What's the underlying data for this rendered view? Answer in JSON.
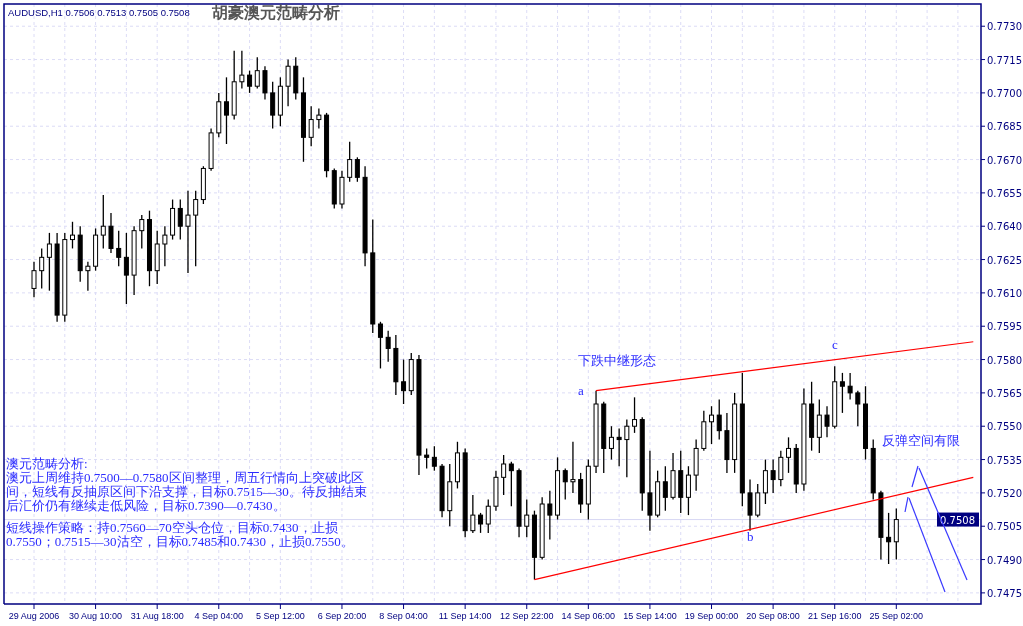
{
  "chart_data": {
    "type": "candlestick",
    "title": "胡豪澳元范畴分析",
    "subtitle": "AUDUSD,H1  0.7506 0.7513 0.7505 0.7508",
    "categories": [
      "29 Aug 2006",
      null,
      null,
      null,
      null,
      null,
      null,
      null,
      "30 Aug 10:00",
      null,
      null,
      null,
      null,
      null,
      null,
      null,
      "31 Aug 18:00",
      null,
      null,
      null,
      null,
      null,
      null,
      null,
      "4 Sep 04:00",
      null,
      null,
      null,
      null,
      null,
      null,
      null,
      "5 Sep 12:00",
      null,
      null,
      null,
      null,
      null,
      null,
      null,
      "6 Sep 20:00",
      null,
      null,
      null,
      null,
      null,
      null,
      null,
      "8 Sep 04:00",
      null,
      null,
      null,
      null,
      null,
      null,
      null,
      "11 Sep 14:00",
      null,
      null,
      null,
      null,
      null,
      null,
      null,
      "12 Sep 22:00",
      null,
      null,
      null,
      null,
      null,
      null,
      null,
      "14 Sep 06:00",
      null,
      null,
      null,
      null,
      null,
      null,
      null,
      "15 Sep 14:00",
      null,
      null,
      null,
      null,
      null,
      null,
      null,
      "19 Sep 00:00",
      null,
      null,
      null,
      null,
      null,
      null,
      null,
      "20 Sep 08:00",
      null,
      null,
      null,
      null,
      null,
      null,
      null,
      "21 Sep 16:00",
      null,
      null,
      null,
      null,
      null,
      null,
      null,
      "25 Sep 02:00",
      null,
      null,
      null,
      null,
      null,
      null,
      null,
      null,
      null,
      null
    ],
    "ohlc": [
      [
        0.7612,
        0.7624,
        0.7608,
        0.762
      ],
      [
        0.762,
        0.763,
        0.7612,
        0.7626
      ],
      [
        0.7626,
        0.7637,
        0.7611,
        0.7632
      ],
      [
        0.7632,
        0.7637,
        0.7597,
        0.76
      ],
      [
        0.76,
        0.7637,
        0.7597,
        0.7634
      ],
      [
        0.7634,
        0.7642,
        0.763,
        0.7636
      ],
      [
        0.7636,
        0.764,
        0.7615,
        0.762
      ],
      [
        0.762,
        0.7624,
        0.7611,
        0.7622
      ],
      [
        0.7622,
        0.7639,
        0.762,
        0.7636
      ],
      [
        0.7636,
        0.7654,
        0.763,
        0.764
      ],
      [
        0.764,
        0.7646,
        0.7628,
        0.763
      ],
      [
        0.763,
        0.7638,
        0.7622,
        0.7626
      ],
      [
        0.7626,
        0.7637,
        0.7605,
        0.7618
      ],
      [
        0.7618,
        0.764,
        0.7609,
        0.7638
      ],
      [
        0.7638,
        0.7645,
        0.763,
        0.7643
      ],
      [
        0.7643,
        0.7647,
        0.7613,
        0.762
      ],
      [
        0.762,
        0.7638,
        0.7614,
        0.7632
      ],
      [
        0.7632,
        0.764,
        0.7622,
        0.7636
      ],
      [
        0.7636,
        0.7652,
        0.7634,
        0.7648
      ],
      [
        0.7648,
        0.7652,
        0.7634,
        0.764
      ],
      [
        0.764,
        0.7656,
        0.7619,
        0.7645
      ],
      [
        0.7645,
        0.7656,
        0.7622,
        0.7652
      ],
      [
        0.7652,
        0.7667,
        0.765,
        0.7666
      ],
      [
        0.7666,
        0.7684,
        0.7665,
        0.7682
      ],
      [
        0.7682,
        0.77,
        0.768,
        0.7696
      ],
      [
        0.7696,
        0.7707,
        0.7677,
        0.769
      ],
      [
        0.769,
        0.7719,
        0.7688,
        0.7705
      ],
      [
        0.7705,
        0.7719,
        0.7702,
        0.7708
      ],
      [
        0.7708,
        0.771,
        0.77,
        0.7703
      ],
      [
        0.7703,
        0.7716,
        0.7702,
        0.771
      ],
      [
        0.771,
        0.7712,
        0.7697,
        0.77
      ],
      [
        0.77,
        0.7705,
        0.7684,
        0.769
      ],
      [
        0.769,
        0.7707,
        0.7685,
        0.7703
      ],
      [
        0.7703,
        0.7715,
        0.7694,
        0.7712
      ],
      [
        0.7712,
        0.7716,
        0.7697,
        0.77
      ],
      [
        0.77,
        0.7707,
        0.7669,
        0.768
      ],
      [
        0.768,
        0.7694,
        0.7676,
        0.7688
      ],
      [
        0.7688,
        0.7693,
        0.7684,
        0.769
      ],
      [
        0.769,
        0.7691,
        0.7662,
        0.7665
      ],
      [
        0.7665,
        0.7666,
        0.7648,
        0.765
      ],
      [
        0.765,
        0.7665,
        0.7648,
        0.7662
      ],
      [
        0.7662,
        0.7678,
        0.766,
        0.767
      ],
      [
        0.767,
        0.7671,
        0.766,
        0.7662
      ],
      [
        0.7662,
        0.7667,
        0.7622,
        0.7628
      ],
      [
        0.7628,
        0.7643,
        0.7592,
        0.7596
      ],
      [
        0.7596,
        0.7597,
        0.7576,
        0.759
      ],
      [
        0.759,
        0.7593,
        0.7579,
        0.7585
      ],
      [
        0.7585,
        0.7591,
        0.7564,
        0.757
      ],
      [
        0.757,
        0.758,
        0.756,
        0.7566
      ],
      [
        0.7566,
        0.7583,
        0.7564,
        0.758
      ],
      [
        0.758,
        0.7582,
        0.7528,
        0.7537
      ],
      [
        0.7537,
        0.754,
        0.7531,
        0.7536
      ],
      [
        0.7536,
        0.7541,
        0.753,
        0.7532
      ],
      [
        0.7532,
        0.7533,
        0.7509,
        0.7512
      ],
      [
        0.7512,
        0.7533,
        0.7505,
        0.7525
      ],
      [
        0.7525,
        0.7543,
        0.7522,
        0.7538
      ],
      [
        0.7538,
        0.754,
        0.75,
        0.7503
      ],
      [
        0.7503,
        0.7519,
        0.7502,
        0.751
      ],
      [
        0.751,
        0.7511,
        0.7502,
        0.7506
      ],
      [
        0.7506,
        0.7517,
        0.7502,
        0.7514
      ],
      [
        0.7514,
        0.753,
        0.7512,
        0.7527
      ],
      [
        0.7527,
        0.7537,
        0.7519,
        0.7533
      ],
      [
        0.7533,
        0.7534,
        0.7514,
        0.753
      ],
      [
        0.753,
        0.7531,
        0.75,
        0.7505
      ],
      [
        0.7505,
        0.7517,
        0.75,
        0.751
      ],
      [
        0.751,
        0.7512,
        0.7481,
        0.7491
      ],
      [
        0.7491,
        0.7518,
        0.749,
        0.7515
      ],
      [
        0.7515,
        0.7521,
        0.7499,
        0.751
      ],
      [
        0.751,
        0.7536,
        0.7508,
        0.753
      ],
      [
        0.753,
        0.7531,
        0.7517,
        0.7525
      ],
      [
        0.7525,
        0.7543,
        0.752,
        0.7526
      ],
      [
        0.7526,
        0.7529,
        0.7511,
        0.7515
      ],
      [
        0.7515,
        0.7535,
        0.7508,
        0.7532
      ],
      [
        0.7532,
        0.7566,
        0.7529,
        0.756
      ],
      [
        0.756,
        0.7561,
        0.7529,
        0.754
      ],
      [
        0.754,
        0.755,
        0.7535,
        0.7545
      ],
      [
        0.7545,
        0.7549,
        0.7532,
        0.7544
      ],
      [
        0.7544,
        0.7553,
        0.7527,
        0.755
      ],
      [
        0.755,
        0.7563,
        0.7547,
        0.7553
      ],
      [
        0.7553,
        0.7554,
        0.7512,
        0.752
      ],
      [
        0.752,
        0.7539,
        0.7503,
        0.751
      ],
      [
        0.751,
        0.753,
        0.7509,
        0.7525
      ],
      [
        0.7525,
        0.7532,
        0.7512,
        0.7518
      ],
      [
        0.7518,
        0.7538,
        0.7517,
        0.753
      ],
      [
        0.753,
        0.7539,
        0.7511,
        0.7518
      ],
      [
        0.7518,
        0.7532,
        0.751,
        0.7528
      ],
      [
        0.7528,
        0.7544,
        0.7521,
        0.754
      ],
      [
        0.754,
        0.7557,
        0.7539,
        0.7552
      ],
      [
        0.7552,
        0.7559,
        0.7542,
        0.7555
      ],
      [
        0.7555,
        0.7562,
        0.7544,
        0.7548
      ],
      [
        0.7548,
        0.7556,
        0.7529,
        0.7535
      ],
      [
        0.7535,
        0.7565,
        0.7529,
        0.756
      ],
      [
        0.756,
        0.7574,
        0.7514,
        0.752
      ],
      [
        0.752,
        0.7526,
        0.7503,
        0.751
      ],
      [
        0.751,
        0.7524,
        0.7509,
        0.752
      ],
      [
        0.752,
        0.7535,
        0.7515,
        0.753
      ],
      [
        0.753,
        0.7535,
        0.752,
        0.7526
      ],
      [
        0.7526,
        0.7539,
        0.7523,
        0.7536
      ],
      [
        0.7536,
        0.7545,
        0.7529,
        0.754
      ],
      [
        0.754,
        0.7542,
        0.752,
        0.7524
      ],
      [
        0.7524,
        0.7567,
        0.7521,
        0.756
      ],
      [
        0.756,
        0.757,
        0.7539,
        0.7545
      ],
      [
        0.7545,
        0.7562,
        0.7538,
        0.7555
      ],
      [
        0.7555,
        0.7559,
        0.7545,
        0.755
      ],
      [
        0.755,
        0.7577,
        0.7549,
        0.757
      ],
      [
        0.757,
        0.7574,
        0.7556,
        0.7568
      ],
      [
        0.7568,
        0.7574,
        0.7562,
        0.7565
      ],
      [
        0.7565,
        0.7566,
        0.755,
        0.756
      ],
      [
        0.756,
        0.7568,
        0.7535,
        0.754
      ],
      [
        0.754,
        0.7544,
        0.7517,
        0.752
      ],
      [
        0.752,
        0.7521,
        0.749,
        0.75
      ],
      [
        0.75,
        0.7511,
        0.7488,
        0.7498
      ],
      [
        0.7498,
        0.7513,
        0.749,
        0.7508
      ],
      null,
      null,
      null,
      null,
      null,
      null,
      null,
      null,
      null,
      null
    ],
    "color": "#000000",
    "series": [
      {
        "type": "line",
        "color": "#ff0000",
        "values": [
          null,
          null,
          null,
          null,
          null,
          null,
          null,
          null,
          null,
          null,
          null,
          null,
          null,
          null,
          null,
          null,
          null,
          null,
          null,
          null,
          null,
          null,
          null,
          null,
          null,
          null,
          null,
          null,
          null,
          null,
          null,
          null,
          null,
          null,
          null,
          null,
          null,
          null,
          null,
          null,
          null,
          null,
          null,
          null,
          null,
          null,
          null,
          null,
          null,
          null,
          null,
          null,
          null,
          null,
          null,
          null,
          null,
          null,
          null,
          null,
          null,
          null,
          null,
          null,
          null,
          null,
          null,
          null,
          null,
          null,
          null,
          null,
          null,
          0.7566,
          null,
          null,
          null,
          null,
          null,
          null,
          null,
          null,
          null,
          null,
          null,
          null,
          null,
          null,
          null,
          null,
          null,
          null,
          null,
          null,
          null,
          null,
          null,
          null,
          null,
          null,
          null,
          null,
          null,
          null,
          null,
          null,
          null,
          null,
          null,
          null,
          null,
          null,
          null,
          null,
          null,
          null,
          null,
          null,
          null,
          null,
          null,
          null,
          0.7588
        ]
      },
      {
        "type": "line",
        "color": "#ff0000",
        "values": [
          null,
          null,
          null,
          null,
          null,
          null,
          null,
          null,
          null,
          null,
          null,
          null,
          null,
          null,
          null,
          null,
          null,
          null,
          null,
          null,
          null,
          null,
          null,
          null,
          null,
          null,
          null,
          null,
          null,
          null,
          null,
          null,
          null,
          null,
          null,
          null,
          null,
          null,
          null,
          null,
          null,
          null,
          null,
          null,
          null,
          null,
          null,
          null,
          null,
          null,
          null,
          null,
          null,
          null,
          null,
          null,
          null,
          null,
          null,
          null,
          null,
          null,
          null,
          null,
          null,
          0.7481,
          null,
          null,
          null,
          null,
          null,
          null,
          null,
          null,
          null,
          null,
          null,
          null,
          null,
          null,
          null,
          null,
          null,
          null,
          null,
          null,
          null,
          null,
          null,
          null,
          null,
          null,
          null,
          null,
          null,
          null,
          null,
          null,
          null,
          null,
          null,
          null,
          null,
          null,
          null,
          null,
          null,
          null,
          null,
          null,
          null,
          null,
          null,
          null,
          null,
          null,
          null,
          null,
          null,
          null,
          null,
          null,
          0.7527
        ]
      }
    ],
    "ylim": [
      0.747,
      0.774
    ],
    "yticks": [
      0.7475,
      {
        "value": 0.749,
        "label": "0.7490"
      },
      0.7505,
      {
        "value": 0.752,
        "label": "0.7520"
      },
      0.7535,
      {
        "value": 0.755,
        "label": "0.7550"
      },
      0.7565,
      {
        "value": 0.758,
        "label": "0.7580"
      },
      0.7595,
      {
        "value": 0.761,
        "label": "0.7610"
      },
      0.7625,
      {
        "value": 0.764,
        "label": "0.7640"
      },
      0.7655,
      {
        "value": 0.767,
        "label": "0.7670"
      },
      0.7685,
      {
        "value": 0.77,
        "label": "0.7700"
      },
      0.7715,
      {
        "value": 0.773,
        "label": "0.7730"
      }
    ],
    "grid": true,
    "ref_lines": [
      {
        "axis": "y",
        "value": 0.7508,
        "label": "0.7508",
        "color": "#d8d8f4"
      }
    ],
    "annotations": [
      "澳元范畴分析:",
      "澳元上周维持0.7500—0.7580区间整理，周五行情向上突破此区间，短线有反抽原区间下沿支撑，目标0.7515—30。待反抽结束后汇价仍有继续走低风险，目标0.7390—0.7430。",
      "短线操作策略：持0.7560—70空头仓位，目标0.7430，止损0.7550；0.7515—30沽空，目标0.7485和0.7430，止损0.7550。",
      "下跌中继形态",
      "a",
      "b",
      {
        "text": "c",
        "y": 0.7581
      },
      "反弹空间有限"
    ]
  }
}
